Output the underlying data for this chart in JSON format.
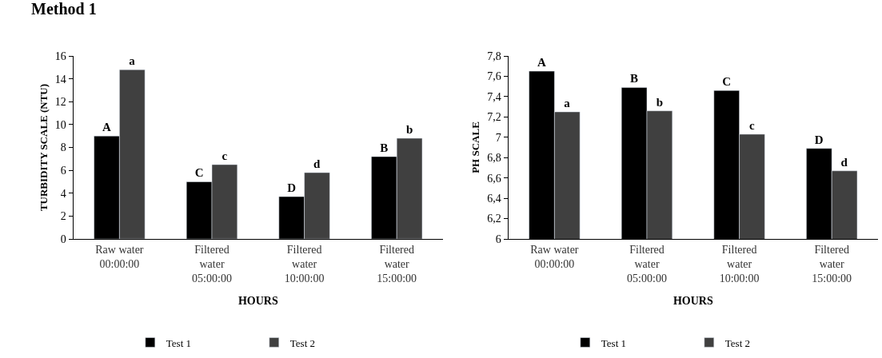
{
  "chart_data": [
    {
      "type": "bar",
      "title": "Method 1",
      "xlabel": "HOURS",
      "ylabel": "TURBIDITY SCALE (NTU)",
      "categories": [
        "Raw water\n00:00:00",
        "Filtered\nwater\n05:00:00",
        "Filtered\nwater\n10:00:00",
        "Filtered\nwater\n15:00:00"
      ],
      "series": [
        {
          "name": "Test 1",
          "color": "#000000",
          "values": [
            9.0,
            5.0,
            3.7,
            7.2
          ],
          "value_labels": [
            "A",
            "C",
            "D",
            "B"
          ]
        },
        {
          "name": "Test 2",
          "color": "#404040",
          "values": [
            14.8,
            6.5,
            5.8,
            8.8
          ],
          "value_labels": [
            "a",
            "c",
            "d",
            "b"
          ]
        }
      ],
      "ylim": [
        0,
        16
      ],
      "yticks": [
        0,
        2,
        4,
        6,
        8,
        10,
        12,
        14,
        16
      ],
      "legend": "bottom"
    },
    {
      "type": "bar",
      "xlabel": "HOURS",
      "ylabel": "PH SCALE",
      "categories": [
        "Raw water\n00:00:00",
        "Filtered\nwater\n05:00:00",
        "Filtered\nwater\n10:00:00",
        "Filtered\nwater\n15:00:00"
      ],
      "series": [
        {
          "name": "Test 1",
          "color": "#000000",
          "values": [
            7.65,
            7.49,
            7.46,
            6.89
          ],
          "value_labels": [
            "A",
            "B",
            "C",
            "D"
          ]
        },
        {
          "name": "Test 2",
          "color": "#404040",
          "values": [
            7.25,
            7.26,
            7.03,
            6.67
          ],
          "value_labels": [
            "a",
            "b",
            "c",
            "d"
          ]
        }
      ],
      "ylim": [
        6,
        7.8
      ],
      "yticks": [
        6,
        {
          "value": 6.2,
          "label": "6,2"
        },
        {
          "value": 6.4,
          "label": "6,4"
        },
        {
          "value": 6.6,
          "label": "6,6"
        },
        {
          "value": 6.8,
          "label": "6,8"
        },
        7,
        {
          "value": 7.2,
          "label": "7,2"
        },
        {
          "value": 7.4,
          "label": "7,4"
        },
        {
          "value": 7.6,
          "label": "7,6"
        },
        {
          "value": 7.8,
          "label": "7,8"
        }
      ],
      "legend": "bottom"
    }
  ]
}
